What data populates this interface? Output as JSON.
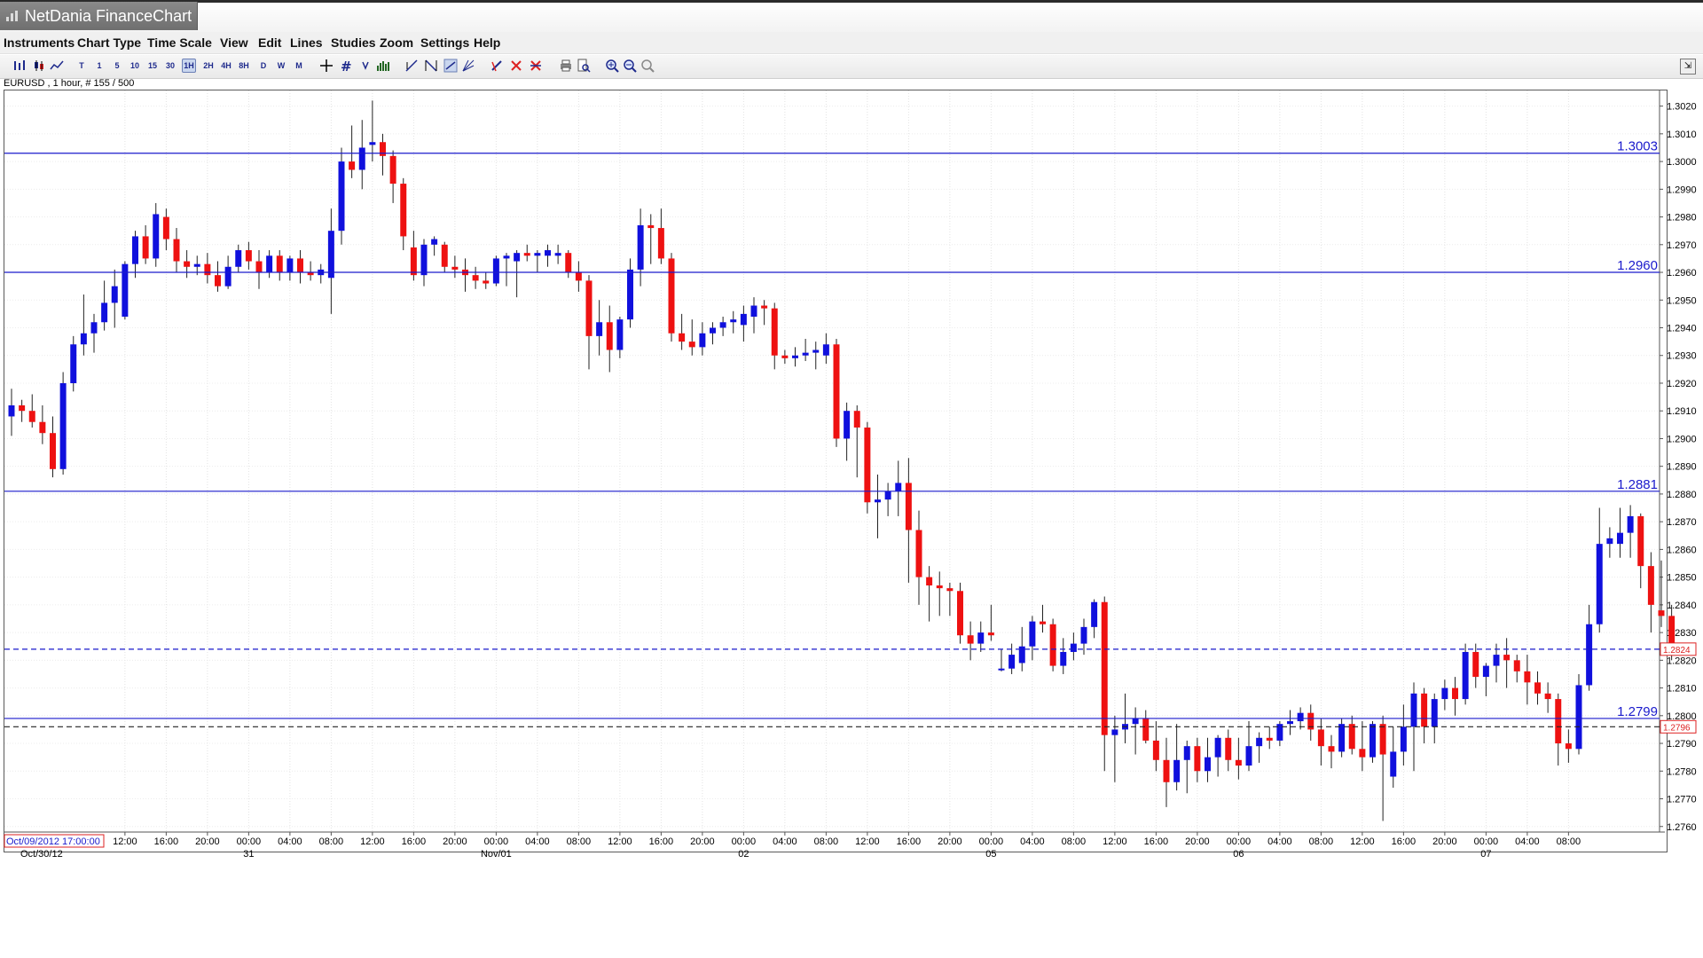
{
  "window": {
    "title": "NetDania FinanceChart"
  },
  "menu": [
    "Instruments",
    "Chart Type",
    "Time Scale",
    "View",
    "Edit",
    "Lines",
    "Studies",
    "Zoom",
    "Settings",
    "Help"
  ],
  "toolbar": {
    "timeframes": [
      "T",
      "1",
      "5",
      "10",
      "15",
      "30",
      "1H",
      "2H",
      "4H",
      "8H",
      "D",
      "W",
      "M"
    ],
    "active_timeframe": "1H",
    "icons": [
      "bar-chart-icon",
      "candlestick-icon",
      "line-chart-icon",
      "crosshair-icon",
      "grid-icon",
      "arrow-down-icon",
      "volume-icon",
      "trendline-icon",
      "fibonacci-icon",
      "channel-icon",
      "fan-icon",
      "pencil-icon",
      "delete-icon",
      "delete-all-icon",
      "print-icon",
      "print-preview-icon",
      "zoom-in-icon",
      "zoom-out-icon",
      "zoom-reset-icon",
      "detach-icon"
    ]
  },
  "instrument_label": "EURUSD , 1 hour, # 155 / 500",
  "chart_data": {
    "type": "candlestick",
    "instrument": "EURUSD",
    "interval": "1 hour",
    "ylim": [
      1.2758,
      1.3025
    ],
    "y_ticks": [
      "1.3020",
      "1.3010",
      "1.3000",
      "1.2990",
      "1.2980",
      "1.2970",
      "1.2960",
      "1.2950",
      "1.2940",
      "1.2930",
      "1.2920",
      "1.2910",
      "1.2900",
      "1.2890",
      "1.2880",
      "1.2870",
      "1.2860",
      "1.2850",
      "1.2840",
      "1.2830",
      "1.2820",
      "1.2810",
      "1.2800",
      "1.2790",
      "1.2780",
      "1.2770",
      "1.2760"
    ],
    "x_start_label": "Oct/09/2012 17:00:00",
    "x_ticks": [
      {
        "index": 11,
        "time": "12:00",
        "date": ""
      },
      {
        "index": 15,
        "time": "16:00",
        "date": ""
      },
      {
        "index": 19,
        "time": "20:00",
        "date": ""
      },
      {
        "index": 23,
        "time": "00:00",
        "date": "31"
      },
      {
        "index": 27,
        "time": "04:00",
        "date": ""
      },
      {
        "index": 31,
        "time": "08:00",
        "date": ""
      },
      {
        "index": 35,
        "time": "12:00",
        "date": ""
      },
      {
        "index": 39,
        "time": "16:00",
        "date": ""
      },
      {
        "index": 43,
        "time": "20:00",
        "date": ""
      },
      {
        "index": 47,
        "time": "00:00",
        "date": "Nov/01"
      },
      {
        "index": 51,
        "time": "04:00",
        "date": ""
      },
      {
        "index": 55,
        "time": "08:00",
        "date": ""
      },
      {
        "index": 59,
        "time": "12:00",
        "date": ""
      },
      {
        "index": 63,
        "time": "16:00",
        "date": ""
      },
      {
        "index": 67,
        "time": "20:00",
        "date": ""
      },
      {
        "index": 71,
        "time": "00:00",
        "date": "02"
      },
      {
        "index": 75,
        "time": "04:00",
        "date": ""
      },
      {
        "index": 79,
        "time": "08:00",
        "date": ""
      },
      {
        "index": 83,
        "time": "12:00",
        "date": ""
      },
      {
        "index": 87,
        "time": "16:00",
        "date": ""
      },
      {
        "index": 91,
        "time": "20:00",
        "date": ""
      },
      {
        "index": 95,
        "time": "00:00",
        "date": "05"
      },
      {
        "index": 99,
        "time": "04:00",
        "date": ""
      },
      {
        "index": 103,
        "time": "08:00",
        "date": ""
      },
      {
        "index": 107,
        "time": "12:00",
        "date": ""
      },
      {
        "index": 111,
        "time": "16:00",
        "date": ""
      },
      {
        "index": 115,
        "time": "20:00",
        "date": ""
      },
      {
        "index": 119,
        "time": "00:00",
        "date": "06"
      },
      {
        "index": 123,
        "time": "04:00",
        "date": ""
      },
      {
        "index": 127,
        "time": "08:00",
        "date": ""
      },
      {
        "index": 131,
        "time": "12:00",
        "date": ""
      },
      {
        "index": 135,
        "time": "16:00",
        "date": ""
      },
      {
        "index": 139,
        "time": "20:00",
        "date": ""
      },
      {
        "index": 143,
        "time": "00:00",
        "date": "07"
      },
      {
        "index": 147,
        "time": "04:00",
        "date": ""
      },
      {
        "index": 151,
        "time": "08:00",
        "date": ""
      }
    ],
    "x_first_date_label": "Oct/30/12",
    "levels": [
      {
        "value": 1.3003,
        "label": "1.3003",
        "style": "solid",
        "color": "#1a1acc"
      },
      {
        "value": 1.296,
        "label": "1.2960",
        "style": "solid",
        "color": "#1a1acc"
      },
      {
        "value": 1.2881,
        "label": "1.2881",
        "style": "solid",
        "color": "#1a1acc"
      },
      {
        "value": 1.2799,
        "label": "1.2799",
        "style": "solid",
        "color": "#1a1acc"
      },
      {
        "value": 1.2824,
        "label": "1.2824",
        "style": "dashed",
        "color": "#1a1acc",
        "axis_tag": true
      },
      {
        "value": 1.2796,
        "label": "1.2796",
        "style": "dashed",
        "color": "#222222",
        "axis_tag": true
      }
    ],
    "current_price": "1.2824",
    "colors": {
      "up": "#1010dd",
      "down": "#ee1111",
      "wick": "#222222",
      "grid": "#dddddd"
    },
    "grid": true,
    "candles": [
      [
        1.2908,
        1.2918,
        1.2901,
        1.2912
      ],
      [
        1.2912,
        1.2914,
        1.2906,
        1.291
      ],
      [
        1.291,
        1.2916,
        1.2904,
        1.2906
      ],
      [
        1.2906,
        1.2912,
        1.2898,
        1.2902
      ],
      [
        1.2902,
        1.2908,
        1.2886,
        1.2889
      ],
      [
        1.2889,
        1.2924,
        1.2887,
        1.292
      ],
      [
        1.292,
        1.2937,
        1.2917,
        1.2934
      ],
      [
        1.2934,
        1.2952,
        1.293,
        1.2938
      ],
      [
        1.2938,
        1.2945,
        1.2931,
        1.2942
      ],
      [
        1.2942,
        1.2957,
        1.2939,
        1.2949
      ],
      [
        1.2949,
        1.2961,
        1.294,
        1.2955
      ],
      [
        1.2944,
        1.2964,
        1.2943,
        1.2963
      ],
      [
        1.2963,
        1.2975,
        1.2958,
        1.2973
      ],
      [
        1.2973,
        1.2977,
        1.2963,
        1.2965
      ],
      [
        1.2965,
        1.2985,
        1.2962,
        1.2981
      ],
      [
        1.298,
        1.2983,
        1.2968,
        1.2972
      ],
      [
        1.2972,
        1.2976,
        1.296,
        1.2964
      ],
      [
        1.2964,
        1.2968,
        1.2958,
        1.2962
      ],
      [
        1.2962,
        1.2966,
        1.2959,
        1.2963
      ],
      [
        1.2963,
        1.2967,
        1.2956,
        1.2959
      ],
      [
        1.2959,
        1.2964,
        1.2953,
        1.2955
      ],
      [
        1.2955,
        1.2966,
        1.2954,
        1.2962
      ],
      [
        1.2962,
        1.297,
        1.296,
        1.2968
      ],
      [
        1.2968,
        1.2971,
        1.2961,
        1.2964
      ],
      [
        1.2964,
        1.2968,
        1.2954,
        1.296
      ],
      [
        1.296,
        1.2968,
        1.2958,
        1.2966
      ],
      [
        1.2966,
        1.2968,
        1.2957,
        1.296
      ],
      [
        1.296,
        1.2966,
        1.2957,
        1.2965
      ],
      [
        1.2965,
        1.2968,
        1.2956,
        1.296
      ],
      [
        1.296,
        1.2964,
        1.2957,
        1.2959
      ],
      [
        1.2959,
        1.2963,
        1.2956,
        1.2961
      ],
      [
        1.2958,
        1.2983,
        1.2945,
        1.2975
      ],
      [
        1.2975,
        1.3005,
        1.297,
        1.3
      ],
      [
        1.3,
        1.3013,
        1.2994,
        1.2997
      ],
      [
        1.2997,
        1.3015,
        1.299,
        1.3005
      ],
      [
        1.3006,
        1.3022,
        1.3,
        1.3007
      ],
      [
        1.3007,
        1.301,
        1.2995,
        1.3002
      ],
      [
        1.3002,
        1.3004,
        1.2985,
        1.2992
      ],
      [
        1.2992,
        1.2994,
        1.2968,
        1.2973
      ],
      [
        1.2969,
        1.2975,
        1.2957,
        1.2959
      ],
      [
        1.2959,
        1.2972,
        1.2955,
        1.297
      ],
      [
        1.297,
        1.2973,
        1.2966,
        1.2972
      ],
      [
        1.297,
        1.2971,
        1.296,
        1.2962
      ],
      [
        1.2962,
        1.2966,
        1.2958,
        1.2961
      ],
      [
        1.2961,
        1.2965,
        1.2953,
        1.2959
      ],
      [
        1.2959,
        1.2962,
        1.2954,
        1.2957
      ],
      [
        1.2957,
        1.296,
        1.2954,
        1.2956
      ],
      [
        1.2956,
        1.2966,
        1.2955,
        1.2965
      ],
      [
        1.2965,
        1.2967,
        1.2955,
        1.2966
      ],
      [
        1.2964,
        1.2968,
        1.2951,
        1.2967
      ],
      [
        1.2967,
        1.297,
        1.2964,
        1.2966
      ],
      [
        1.2966,
        1.2968,
        1.296,
        1.2967
      ],
      [
        1.2966,
        1.297,
        1.2962,
        1.2968
      ],
      [
        1.2966,
        1.297,
        1.2963,
        1.2967
      ],
      [
        1.2967,
        1.2968,
        1.2958,
        1.296
      ],
      [
        1.296,
        1.2964,
        1.2953,
        1.2957
      ],
      [
        1.2957,
        1.2959,
        1.2925,
        1.2937
      ],
      [
        1.2937,
        1.295,
        1.293,
        1.2942
      ],
      [
        1.2942,
        1.2948,
        1.2924,
        1.2932
      ],
      [
        1.2932,
        1.2944,
        1.2929,
        1.2943
      ],
      [
        1.2943,
        1.2965,
        1.294,
        1.2961
      ],
      [
        1.2961,
        1.2983,
        1.2955,
        1.2977
      ],
      [
        1.2977,
        1.2981,
        1.2963,
        1.2976
      ],
      [
        1.2976,
        1.2983,
        1.2963,
        1.2965
      ],
      [
        1.2965,
        1.2967,
        1.2935,
        1.2938
      ],
      [
        1.2938,
        1.2945,
        1.2932,
        1.2935
      ],
      [
        1.2935,
        1.2943,
        1.293,
        1.2933
      ],
      [
        1.2933,
        1.2942,
        1.293,
        1.2938
      ],
      [
        1.2938,
        1.2942,
        1.2934,
        1.294
      ],
      [
        1.294,
        1.2944,
        1.2937,
        1.2942
      ],
      [
        1.2942,
        1.2946,
        1.2938,
        1.2943
      ],
      [
        1.2941,
        1.2948,
        1.2935,
        1.2945
      ],
      [
        1.2944,
        1.2951,
        1.2938,
        1.2948
      ],
      [
        1.2948,
        1.295,
        1.2941,
        1.2947
      ],
      [
        1.2947,
        1.2949,
        1.2925,
        1.293
      ],
      [
        1.293,
        1.2932,
        1.2927,
        1.2929
      ],
      [
        1.2929,
        1.2933,
        1.2926,
        1.293
      ],
      [
        1.293,
        1.2936,
        1.2928,
        1.2931
      ],
      [
        1.2931,
        1.2935,
        1.2925,
        1.2932
      ],
      [
        1.293,
        1.2938,
        1.2927,
        1.2934
      ],
      [
        1.2934,
        1.2936,
        1.2897,
        1.29
      ],
      [
        1.29,
        1.2913,
        1.2892,
        1.291
      ],
      [
        1.291,
        1.2912,
        1.2886,
        1.2904
      ],
      [
        1.2904,
        1.2906,
        1.2873,
        1.2877
      ],
      [
        1.2877,
        1.2887,
        1.2864,
        1.2878
      ],
      [
        1.2878,
        1.2884,
        1.2872,
        1.2881
      ],
      [
        1.2881,
        1.2892,
        1.2872,
        1.2884
      ],
      [
        1.2884,
        1.2893,
        1.2848,
        1.2867
      ],
      [
        1.2867,
        1.2874,
        1.284,
        1.285
      ],
      [
        1.285,
        1.2854,
        1.2834,
        1.2847
      ],
      [
        1.2847,
        1.2852,
        1.2836,
        1.2846
      ],
      [
        1.2846,
        1.2848,
        1.2836,
        1.2845
      ],
      [
        1.2845,
        1.2848,
        1.2826,
        1.2829
      ],
      [
        1.2829,
        1.2834,
        1.282,
        1.2826
      ],
      [
        1.2826,
        1.2834,
        1.2823,
        1.283
      ],
      [
        1.283,
        1.284,
        1.2827,
        1.2829
      ],
      [
        1.2817,
        1.2824,
        1.2816,
        1.2817
      ],
      [
        1.2817,
        1.2826,
        1.2815,
        1.2822
      ],
      [
        1.2819,
        1.2832,
        1.2816,
        1.2825
      ],
      [
        1.2825,
        1.2836,
        1.282,
        1.2834
      ],
      [
        1.2834,
        1.284,
        1.283,
        1.2833
      ],
      [
        1.2833,
        1.2835,
        1.2816,
        1.2818
      ],
      [
        1.2818,
        1.2828,
        1.2815,
        1.2823
      ],
      [
        1.2823,
        1.283,
        1.282,
        1.2826
      ],
      [
        1.2826,
        1.2835,
        1.2822,
        1.2832
      ],
      [
        1.2832,
        1.2842,
        1.2828,
        1.2841
      ],
      [
        1.2841,
        1.2843,
        1.278,
        1.2793
      ],
      [
        1.2793,
        1.28,
        1.2776,
        1.2795
      ],
      [
        1.2795,
        1.2808,
        1.279,
        1.2797
      ],
      [
        1.2797,
        1.2803,
        1.2786,
        1.2799
      ],
      [
        1.2799,
        1.2802,
        1.279,
        1.2791
      ],
      [
        1.2791,
        1.2798,
        1.278,
        1.2784
      ],
      [
        1.2784,
        1.2792,
        1.2767,
        1.2776
      ],
      [
        1.2776,
        1.2797,
        1.2773,
        1.2784
      ],
      [
        1.2784,
        1.2791,
        1.2772,
        1.2789
      ],
      [
        1.2789,
        1.2792,
        1.2776,
        1.278
      ],
      [
        1.278,
        1.2792,
        1.2776,
        1.2785
      ],
      [
        1.2785,
        1.2793,
        1.2778,
        1.2792
      ],
      [
        1.2792,
        1.2795,
        1.278,
        1.2784
      ],
      [
        1.2784,
        1.2792,
        1.2777,
        1.2782
      ],
      [
        1.2782,
        1.2798,
        1.278,
        1.2789
      ],
      [
        1.2789,
        1.2794,
        1.2783,
        1.2792
      ],
      [
        1.2792,
        1.2796,
        1.2788,
        1.2791
      ],
      [
        1.2791,
        1.2798,
        1.2789,
        1.2797
      ],
      [
        1.2797,
        1.2802,
        1.2793,
        1.2798
      ],
      [
        1.2798,
        1.2803,
        1.2795,
        1.2801
      ],
      [
        1.2801,
        1.2804,
        1.2791,
        1.2795
      ],
      [
        1.2795,
        1.2799,
        1.2782,
        1.2789
      ],
      [
        1.2789,
        1.2793,
        1.2781,
        1.2787
      ],
      [
        1.2787,
        1.2799,
        1.2785,
        1.2797
      ],
      [
        1.2797,
        1.28,
        1.2786,
        1.2788
      ],
      [
        1.2788,
        1.2798,
        1.278,
        1.2785
      ],
      [
        1.2785,
        1.2798,
        1.2783,
        1.2797
      ],
      [
        1.2797,
        1.28,
        1.2762,
        1.2786
      ],
      [
        1.2778,
        1.2796,
        1.2774,
        1.2787
      ],
      [
        1.2787,
        1.2804,
        1.2782,
        1.2796
      ],
      [
        1.2796,
        1.2812,
        1.278,
        1.2808
      ],
      [
        1.2808,
        1.281,
        1.279,
        1.2796
      ],
      [
        1.2796,
        1.2808,
        1.279,
        1.2806
      ],
      [
        1.2806,
        1.2813,
        1.2802,
        1.281
      ],
      [
        1.281,
        1.2814,
        1.28,
        1.2806
      ],
      [
        1.2806,
        1.2826,
        1.2804,
        1.2823
      ],
      [
        1.2823,
        1.2826,
        1.281,
        1.2814
      ],
      [
        1.2814,
        1.2819,
        1.2807,
        1.2818
      ],
      [
        1.2818,
        1.2826,
        1.2812,
        1.2822
      ],
      [
        1.2822,
        1.2828,
        1.281,
        1.282
      ],
      [
        1.282,
        1.2822,
        1.2812,
        1.2816
      ],
      [
        1.2816,
        1.2822,
        1.2804,
        1.2812
      ],
      [
        1.2812,
        1.2816,
        1.2804,
        1.2808
      ],
      [
        1.2808,
        1.2812,
        1.2801,
        1.2806
      ],
      [
        1.2806,
        1.2808,
        1.2782,
        1.279
      ],
      [
        1.279,
        1.2795,
        1.2783,
        1.2788
      ],
      [
        1.2788,
        1.2815,
        1.2786,
        1.2811
      ],
      [
        1.2811,
        1.284,
        1.2809,
        1.2833
      ],
      [
        1.2833,
        1.2875,
        1.283,
        1.2862
      ],
      [
        1.2862,
        1.2868,
        1.2857,
        1.2864
      ],
      [
        1.2862,
        1.2875,
        1.2857,
        1.2866
      ],
      [
        1.2866,
        1.2876,
        1.2857,
        1.2872
      ],
      [
        1.2872,
        1.2873,
        1.2846,
        1.2854
      ],
      [
        1.2854,
        1.2859,
        1.283,
        1.284
      ],
      [
        1.2838,
        1.2856,
        1.2832,
        1.2836
      ],
      [
        1.2836,
        1.284,
        1.282,
        1.2824
      ]
    ]
  }
}
